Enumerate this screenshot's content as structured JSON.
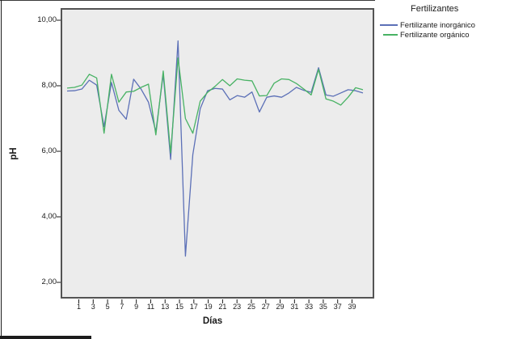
{
  "figure": {
    "background": "#ffffff",
    "plot_background": "#ECECEC",
    "frame_color": "#545454"
  },
  "y_axis": {
    "title": "pH",
    "ticks": [
      {
        "label": "10,00",
        "value": 10
      },
      {
        "label": "8,00",
        "value": 8
      },
      {
        "label": "6,00",
        "value": 6
      },
      {
        "label": "4,00",
        "value": 4
      },
      {
        "label": "2,00",
        "value": 2
      }
    ]
  },
  "x_axis": {
    "title": "Días",
    "ticks": [
      "1",
      "3",
      "5",
      "7",
      "9",
      "11",
      "13",
      "15",
      "17",
      "19",
      "21",
      "23",
      "25",
      "27",
      "29",
      "31",
      "33",
      "35",
      "37",
      "39"
    ]
  },
  "legend": {
    "title": "Fertilizantes",
    "entries": [
      {
        "label": "Fertilizante inorgánico",
        "color": "#5C70B7"
      },
      {
        "label": "Fertilizante orgánico",
        "color": "#48B264"
      }
    ]
  },
  "chart_data": {
    "type": "line",
    "title": "",
    "xlabel": "Días",
    "ylabel": "pH",
    "ylim": [
      1.5,
      10.4
    ],
    "grid": false,
    "legend_position": "top-right-outside",
    "x": [
      1,
      2,
      3,
      4,
      5,
      6,
      7,
      8,
      9,
      10,
      11,
      12,
      13,
      14,
      15,
      16,
      17,
      18,
      19,
      20,
      21,
      22,
      23,
      24,
      25,
      26,
      27,
      28,
      29,
      30,
      31,
      32,
      33,
      34,
      35,
      36,
      37,
      38,
      39,
      40,
      41
    ],
    "series": [
      {
        "name": "Fertilizante inorgánico",
        "color": "#5C70B7",
        "values": [
          7.84,
          7.85,
          7.9,
          8.17,
          8.02,
          6.75,
          8.1,
          7.25,
          6.98,
          8.2,
          7.9,
          7.5,
          6.6,
          8.35,
          5.75,
          9.37,
          2.8,
          5.9,
          7.3,
          7.85,
          7.92,
          7.9,
          7.57,
          7.7,
          7.65,
          7.81,
          7.2,
          7.65,
          7.69,
          7.65,
          7.78,
          7.95,
          7.86,
          7.8,
          8.55,
          7.72,
          7.68,
          7.78,
          7.88,
          7.85,
          7.78
        ]
      },
      {
        "name": "Fertilizante orgánico",
        "color": "#48B264",
        "values": [
          7.93,
          7.95,
          8.02,
          8.35,
          8.24,
          6.55,
          8.35,
          7.5,
          7.81,
          7.83,
          7.95,
          8.05,
          6.5,
          8.45,
          5.95,
          8.85,
          7.0,
          6.55,
          7.53,
          7.8,
          7.98,
          8.19,
          8.0,
          8.21,
          8.17,
          8.15,
          7.69,
          7.7,
          8.08,
          8.21,
          8.19,
          8.07,
          7.9,
          7.72,
          8.5,
          7.6,
          7.53,
          7.41,
          7.65,
          7.94,
          7.88
        ]
      }
    ]
  }
}
